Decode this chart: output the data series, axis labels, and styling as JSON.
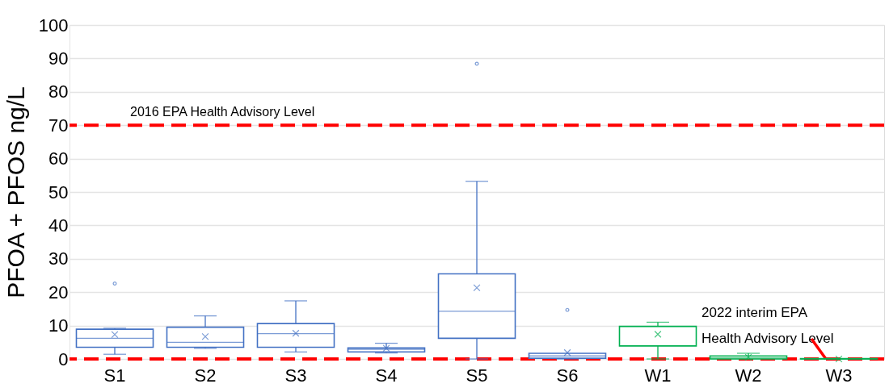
{
  "chart_data": {
    "type": "box",
    "ylabel": "PFOA + PFOS ng/L",
    "categories": [
      "S1",
      "S2",
      "S3",
      "S4",
      "S5",
      "S6",
      "W1",
      "W2",
      "W3"
    ],
    "colors": [
      "#4472c4",
      "#4472c4",
      "#4472c4",
      "#4472c4",
      "#4472c4",
      "#4472c4",
      "#00b050",
      "#00b050",
      "#00b050"
    ],
    "boxes": [
      {
        "low": 1.4,
        "q1": 3.5,
        "median": 6.2,
        "q3": 8.9,
        "high": 9.2,
        "mean": 7.3,
        "outliers": [
          22.6
        ]
      },
      {
        "low": 3.2,
        "q1": 3.5,
        "median": 5.0,
        "q3": 9.5,
        "high": 12.9,
        "mean": 6.7
      },
      {
        "low": 2.1,
        "q1": 3.5,
        "median": 7.6,
        "q3": 10.6,
        "high": 17.4,
        "mean": 7.7
      },
      {
        "low": 1.8,
        "q1": 2.1,
        "median": 2.9,
        "q3": 3.3,
        "high": 4.7,
        "mean": 3.2
      },
      {
        "low": 0,
        "q1": 6.2,
        "median": 14.3,
        "q3": 25.5,
        "high": 53.2,
        "mean": 21.3,
        "outliers": [
          88.4
        ]
      },
      {
        "low": 0,
        "q1": 0.2,
        "median": 0.9,
        "q3": 1.7,
        "high": 1.7,
        "mean": 1.9,
        "outliers": [
          14.7
        ]
      },
      {
        "low": 0,
        "q1": 3.9,
        "median": 9.7,
        "q3": 9.8,
        "high": 11.0,
        "mean": 7.4
      },
      {
        "low": 0,
        "q1": 0,
        "median": 0.3,
        "q3": 0.9,
        "high": 1.7,
        "mean": 0.5
      },
      {
        "low": 0,
        "q1": 0,
        "median": 0,
        "q3": 0.1,
        "high": 0.1,
        "mean": 0
      }
    ],
    "ylim": [
      0,
      100
    ],
    "yticks": [
      0,
      10,
      20,
      30,
      40,
      50,
      60,
      70,
      80,
      90,
      100
    ],
    "grid": "y",
    "marker": "cross",
    "ref_lines": [
      {
        "axis": "y",
        "value": 70,
        "label": "2016 EPA  Health Advisory Level",
        "color": "#ff0000",
        "line_style": "dashed"
      },
      {
        "axis": "y",
        "value": 0,
        "label": "2022  interim EPA\nHealth Advisory Level",
        "color": "#ff0000",
        "line_style": "dashed"
      }
    ]
  }
}
